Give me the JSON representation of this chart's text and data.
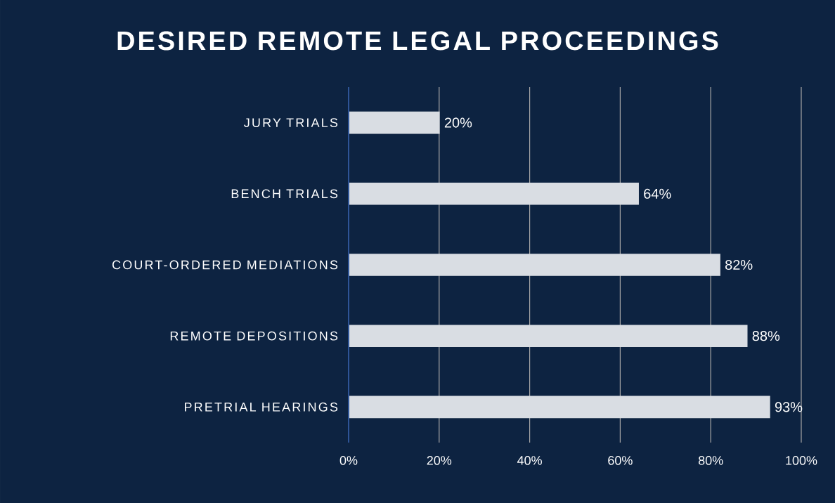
{
  "chart_data": {
    "type": "bar",
    "orientation": "horizontal",
    "title": "DESIRED REMOTE LEGAL PROCEEDINGS",
    "categories": [
      "JURY TRIALS",
      "BENCH TRIALS",
      "COURT-ORDERED MEDIATIONS",
      "REMOTE DEPOSITIONS",
      "PRETRIAL HEARINGS"
    ],
    "values": [
      20,
      64,
      82,
      88,
      93
    ],
    "value_labels": [
      "20%",
      "64%",
      "82%",
      "88%",
      "93%"
    ],
    "color": "#d9dde3",
    "xlim": [
      0,
      100
    ],
    "xticks": [
      {
        "value": 0,
        "label": "0%"
      },
      {
        "value": 20,
        "label": "20%"
      },
      {
        "value": 40,
        "label": "40%"
      },
      {
        "value": 60,
        "label": "60%"
      },
      {
        "value": 80,
        "label": "80%"
      },
      {
        "value": 100,
        "label": "100%"
      }
    ],
    "grid": "x"
  }
}
